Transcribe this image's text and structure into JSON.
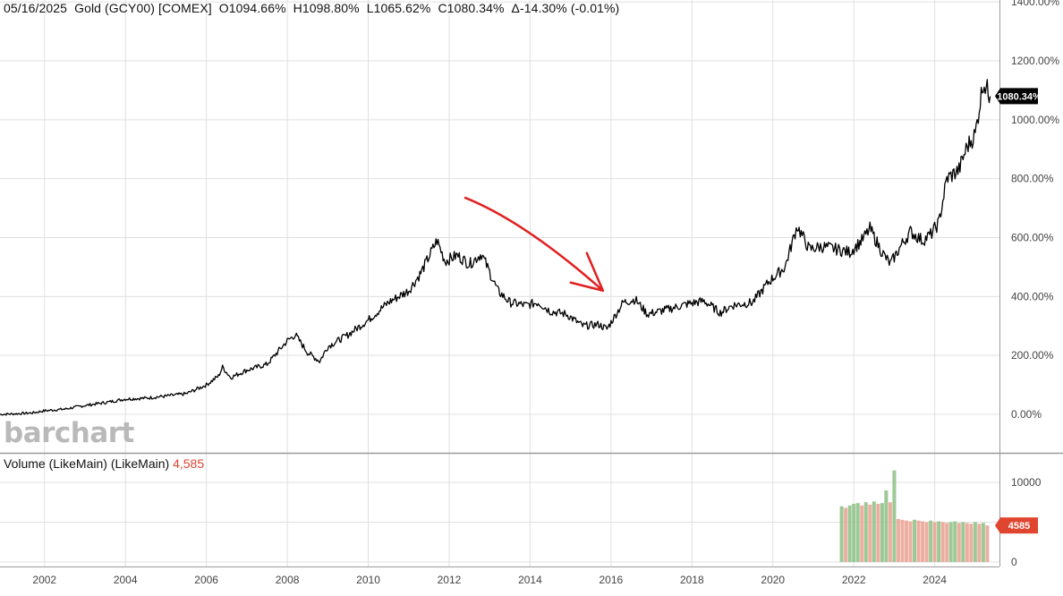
{
  "header": {
    "date": "05/16/2025",
    "symbol": "Gold (GCY00) [COMEX]",
    "open": "O1094.66%",
    "high": "H1098.80%",
    "low": "L1065.62%",
    "close": "C1080.34%",
    "change": "Δ-14.30% (-0.01%)"
  },
  "watermark": "barchart",
  "volume_legend": {
    "label": "Volume (LikeMain)  (LikeMain)",
    "value": "4,585"
  },
  "colors": {
    "price_line": "#000000",
    "last_badge": "#000000",
    "volume_badge": "#e0452f",
    "volume_up": "#8cc084",
    "volume_down": "#e8a090",
    "annotation_arrow": "#e02020",
    "grid": "#e0e0e0"
  },
  "chart_data": [
    {
      "type": "line",
      "title": "",
      "ylabel": "",
      "y_axis_side": "right",
      "y_unit": "%",
      "ylim": [
        -20,
        1400
      ],
      "yticks": [
        {
          "value": 0,
          "label": "0.00%"
        },
        {
          "value": 200,
          "label": "200.00%"
        },
        {
          "value": 400,
          "label": "400.00%"
        },
        {
          "value": 600,
          "label": "600.00%"
        },
        {
          "value": 800,
          "label": "800.00%"
        },
        {
          "value": 1000,
          "label": "1000.00%"
        },
        {
          "value": 1200,
          "label": "1200.00%"
        },
        {
          "value": 1400,
          "label": "1400.00%"
        }
      ],
      "xlim": [
        2000.9,
        2025.6
      ],
      "xticks": [
        "2002",
        "2004",
        "2006",
        "2008",
        "2010",
        "2012",
        "2014",
        "2016",
        "2018",
        "2020",
        "2022",
        "2024"
      ],
      "grid": true,
      "last_value_label": "1080.34%",
      "last_value": 1080.34,
      "x": [
        2000.9,
        2001.3,
        2001.7,
        2002.0,
        2002.5,
        2003.0,
        2003.5,
        2004.0,
        2004.5,
        2005.0,
        2005.5,
        2006.0,
        2006.3,
        2006.4,
        2006.6,
        2007.0,
        2007.5,
        2008.0,
        2008.2,
        2008.5,
        2008.8,
        2009.0,
        2009.5,
        2010.0,
        2010.5,
        2011.0,
        2011.3,
        2011.7,
        2011.9,
        2012.2,
        2012.5,
        2012.8,
        2013.2,
        2013.5,
        2013.9,
        2014.2,
        2014.5,
        2014.9,
        2015.3,
        2015.7,
        2015.9,
        2016.3,
        2016.6,
        2016.9,
        2017.5,
        2017.9,
        2018.3,
        2018.7,
        2019.0,
        2019.5,
        2019.9,
        2020.3,
        2020.6,
        2020.9,
        2021.2,
        2021.6,
        2021.9,
        2022.2,
        2022.4,
        2022.7,
        2022.9,
        2023.2,
        2023.4,
        2023.7,
        2023.9,
        2024.1,
        2024.3,
        2024.6,
        2024.8,
        2025.0,
        2025.2,
        2025.37
      ],
      "y": [
        0,
        2,
        5,
        12,
        18,
        30,
        40,
        52,
        55,
        62,
        70,
        100,
        130,
        160,
        125,
        150,
        170,
        250,
        270,
        210,
        180,
        230,
        270,
        320,
        380,
        420,
        480,
        590,
        520,
        540,
        510,
        545,
        420,
        380,
        370,
        380,
        350,
        340,
        300,
        305,
        290,
        380,
        390,
        340,
        360,
        375,
        385,
        345,
        370,
        380,
        450,
        500,
        640,
        560,
        570,
        560,
        550,
        590,
        630,
        550,
        510,
        580,
        620,
        590,
        610,
        650,
        800,
        830,
        910,
        950,
        1130,
        1080
      ]
    },
    {
      "type": "bar",
      "title": "",
      "name": "Volume (LikeMain)",
      "y_axis_side": "right",
      "ylim": [
        0,
        11500
      ],
      "yticks": [
        {
          "value": 0,
          "label": "0"
        },
        {
          "value": 10000,
          "label": "10000"
        }
      ],
      "last_value_label": "4585",
      "last_value": 4585,
      "x": [
        2021.7,
        2021.8,
        2021.9,
        2022.0,
        2022.1,
        2022.2,
        2022.3,
        2022.4,
        2022.5,
        2022.6,
        2022.7,
        2022.8,
        2022.9,
        2023.0,
        2023.1,
        2023.2,
        2023.3,
        2023.4,
        2023.5,
        2023.6,
        2023.7,
        2023.8,
        2023.9,
        2024.0,
        2024.1,
        2024.2,
        2024.3,
        2024.4,
        2024.5,
        2024.6,
        2024.7,
        2024.8,
        2024.9,
        2025.0,
        2025.1,
        2025.2,
        2025.3
      ],
      "values": [
        7000,
        6800,
        7100,
        7300,
        7400,
        7100,
        7500,
        7200,
        7600,
        7300,
        7400,
        9000,
        7500,
        11500,
        5400,
        5300,
        5200,
        5100,
        5300,
        5200,
        5100,
        5000,
        5200,
        5000,
        5100,
        5000,
        4900,
        5000,
        5100,
        4900,
        5000,
        4900,
        4800,
        5000,
        4800,
        4900,
        4585
      ]
    }
  ],
  "annotation": {
    "type": "arrow",
    "from": {
      "x": 2012.4,
      "y": 735
    },
    "to": {
      "x": 2015.8,
      "y": 420
    }
  }
}
